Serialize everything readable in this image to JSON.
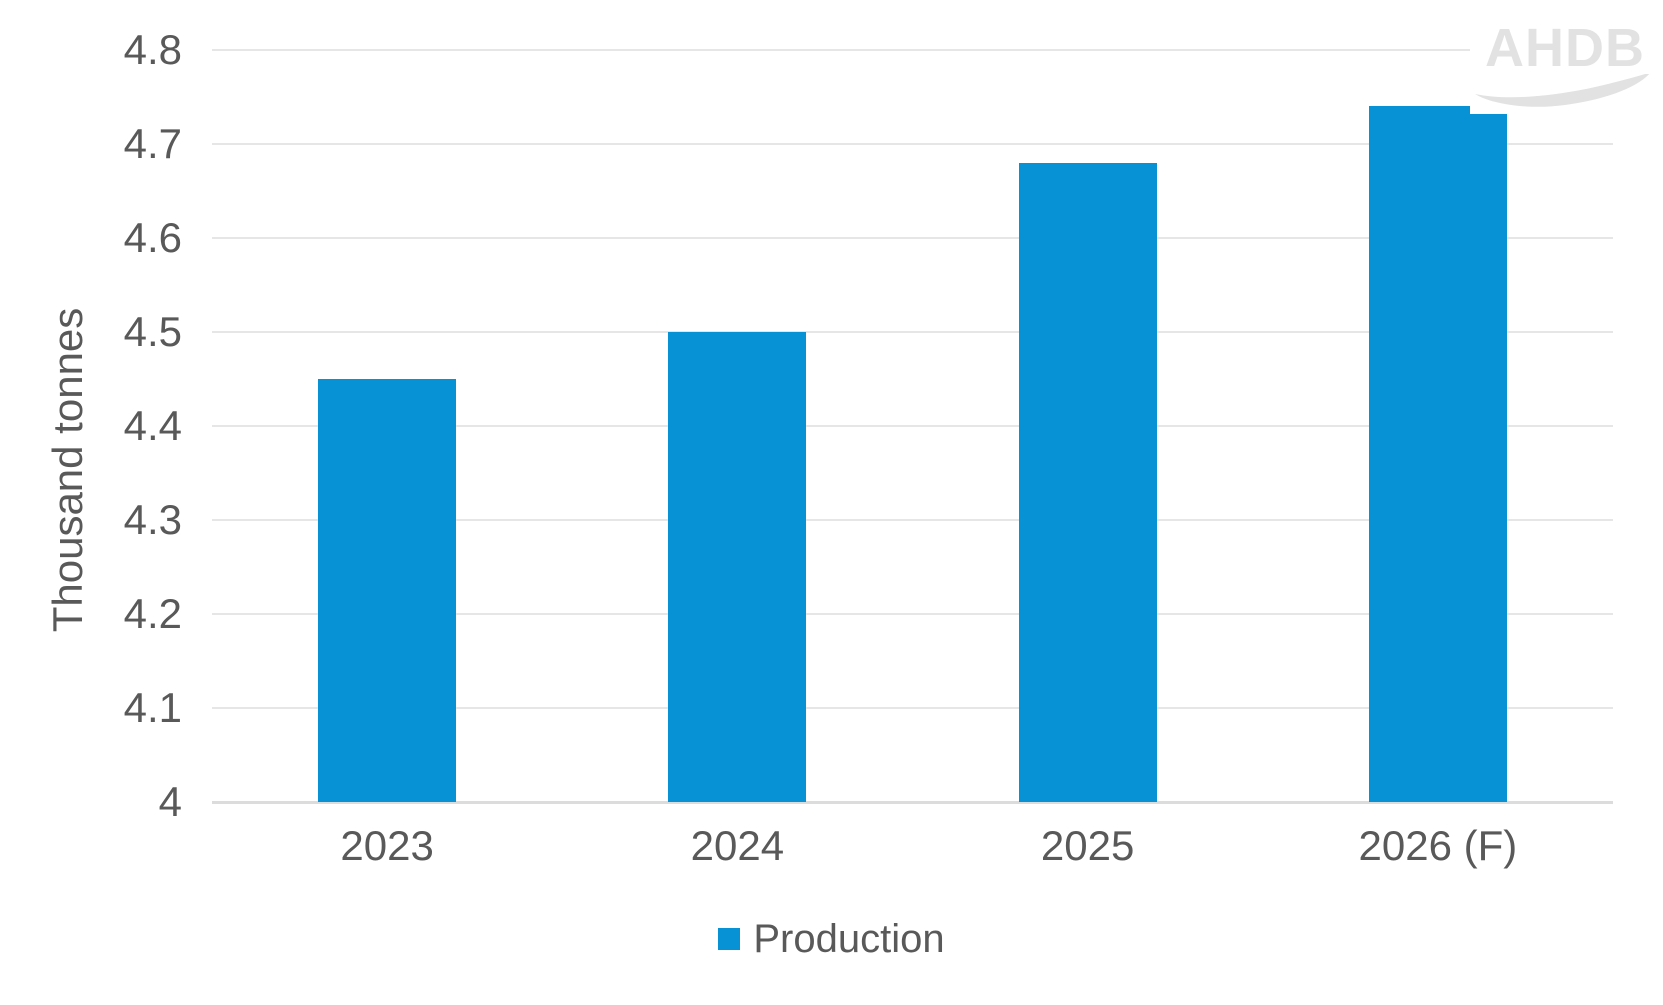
{
  "logo": {
    "text": "AHDB"
  },
  "colors": {
    "bar": "#0892d6",
    "text": "#595959",
    "grid": "#e6e6e6",
    "axis_line": "#dcdcdc",
    "logo_gray": "#e2e2e2"
  },
  "legend": {
    "label": "Production"
  },
  "chart_data": {
    "type": "bar",
    "categories": [
      "2023",
      "2024",
      "2025",
      "2026 (F)"
    ],
    "series": [
      {
        "name": "Production",
        "values": [
          4.45,
          4.5,
          4.68,
          4.74
        ]
      }
    ],
    "title": "",
    "xlabel": "",
    "ylabel": "Thousand tonnes",
    "ylim": [
      4.0,
      4.8
    ],
    "ytick_step": 0.1,
    "ytick_labels": [
      "4",
      "4.1",
      "4.2",
      "4.3",
      "4.4",
      "4.5",
      "4.6",
      "4.7",
      "4.8"
    ],
    "grid": true,
    "legend_position": "bottom",
    "bar_color": "#0892d6"
  }
}
